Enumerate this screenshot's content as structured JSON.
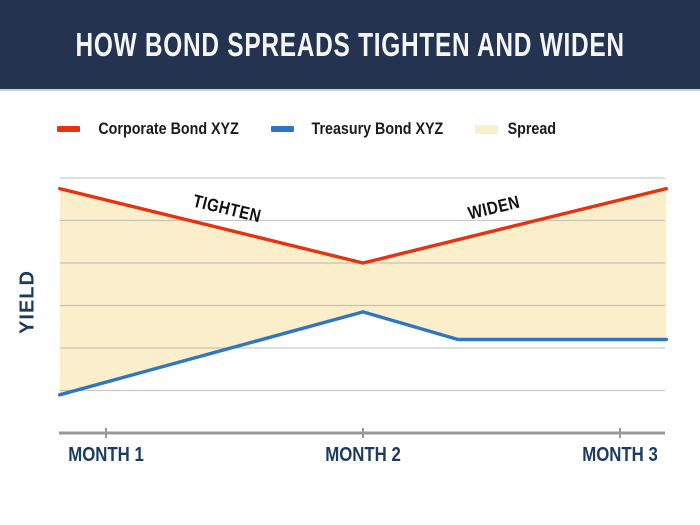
{
  "header": {
    "title": "HOW BOND SPREADS TIGHTEN AND WIDEN"
  },
  "legend": {
    "items": [
      {
        "label": "Corporate Bond XYZ",
        "color": "#e5330f"
      },
      {
        "label": "Treasury Bond XYZ",
        "color": "#2f75c2"
      },
      {
        "label": "Spread",
        "color": "#fbeecb"
      }
    ]
  },
  "chart_data": {
    "type": "line",
    "title": "HOW BOND SPREADS TIGHTEN AND WIDEN",
    "xlabel": "",
    "ylabel": "YIELD",
    "x_categories": [
      "MONTH 1",
      "MONTH 2",
      "MONTH 3"
    ],
    "x_tick_positions": [
      1,
      2,
      3
    ],
    "xlim": [
      0.82,
      3.18
    ],
    "ylim": [
      0,
      6
    ],
    "y_tick_labels_shown": false,
    "gridlines": {
      "horizontal_values": [
        1,
        2,
        3,
        4,
        5,
        6
      ],
      "vertical": false
    },
    "legend_position": "top-left",
    "series": [
      {
        "name": "Corporate Bond XYZ",
        "color": "#e5330f",
        "x": [
          0.82,
          2.0,
          3.18
        ],
        "y": [
          5.75,
          4.0,
          5.75
        ]
      },
      {
        "name": "Treasury Bond XYZ",
        "color": "#2f75c2",
        "x": [
          0.82,
          2.0,
          2.37,
          3.18
        ],
        "y": [
          0.9,
          2.85,
          2.2,
          2.2
        ]
      }
    ],
    "spread": {
      "label": "Spread",
      "fill_color": "#fbeecb",
      "between": [
        "Corporate Bond XYZ",
        "Treasury Bond XYZ"
      ]
    },
    "annotations": [
      {
        "text": "TIGHTEN",
        "x": 1.47,
        "y": 5.27,
        "angle": 13.5
      },
      {
        "text": "WIDEN",
        "x": 2.51,
        "y": 5.29,
        "angle": -13.5
      }
    ]
  },
  "colors": {
    "banner_background": "#233350",
    "banner_text": "#f5f6f8",
    "banner_divider": "#ccd1da",
    "axis": "#98999b",
    "gridline": "#cfcfcf",
    "axis_label_navy": "#1d3a5f",
    "annotation_text": "#111111",
    "legend_text": "#1b1b1b",
    "background": "#ffffff"
  }
}
